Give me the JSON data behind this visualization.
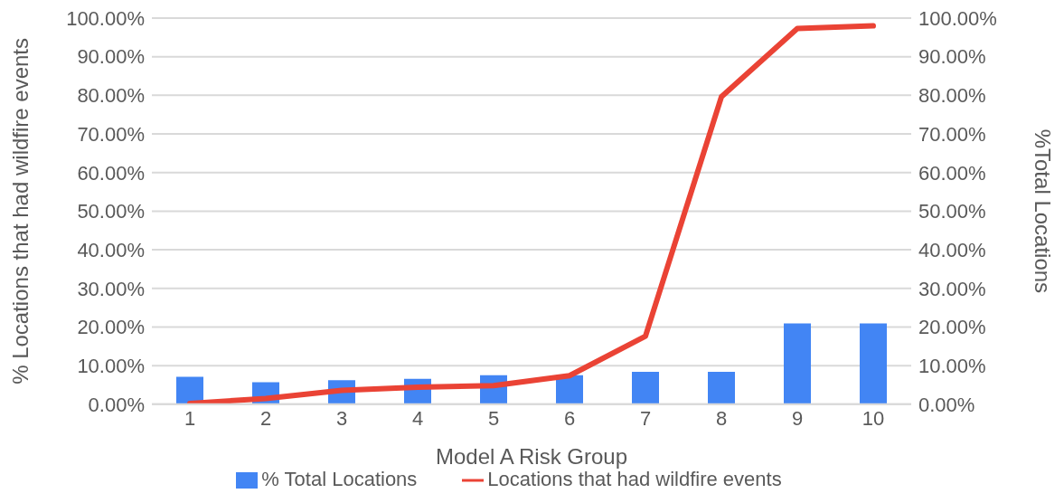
{
  "chart_data": {
    "type": "bar",
    "xlabel": "Model A Risk Group",
    "ylabel": "% Locations that had wildfire events",
    "y2label": "%Total Locations",
    "categories": [
      "1",
      "2",
      "3",
      "4",
      "5",
      "6",
      "7",
      "8",
      "9",
      "10"
    ],
    "series": [
      {
        "name": "% Total Locations",
        "axis": "y2",
        "color": "#4285f4",
        "values": [
          7.1,
          5.7,
          6.2,
          6.6,
          7.5,
          7.5,
          8.4,
          8.4,
          20.9,
          20.9
        ]
      },
      {
        "name": "Locations that had wildfire events",
        "type": "line",
        "color": "#ea4335",
        "values": [
          0.2,
          1.5,
          3.6,
          4.4,
          4.8,
          7.4,
          17.6,
          79.6,
          97.3,
          98.0
        ]
      }
    ],
    "ylim": [
      0,
      100
    ],
    "yticks": [
      {
        "value": 0,
        "label": "0.00%"
      },
      {
        "value": 10,
        "label": "10.00%"
      },
      {
        "value": 20,
        "label": "20.00%"
      },
      {
        "value": 30,
        "label": "30.00%"
      },
      {
        "value": 40,
        "label": "40.00%"
      },
      {
        "value": 50,
        "label": "50.00%"
      },
      {
        "value": 60,
        "label": "60.00%"
      },
      {
        "value": 70,
        "label": "70.00%"
      },
      {
        "value": 80,
        "label": "80.00%"
      },
      {
        "value": 90,
        "label": "90.00%"
      },
      {
        "value": 100,
        "label": "100.00%"
      }
    ],
    "y2lim": [
      0,
      100
    ],
    "y2ticks": [
      {
        "value": 0,
        "label": "0.00%"
      },
      {
        "value": 10,
        "label": "10.00%"
      },
      {
        "value": 20,
        "label": "20.00%"
      },
      {
        "value": 30,
        "label": "30.00%"
      },
      {
        "value": 40,
        "label": "40.00%"
      },
      {
        "value": 50,
        "label": "50.00%"
      },
      {
        "value": 60,
        "label": "60.00%"
      },
      {
        "value": 70,
        "label": "70.00%"
      },
      {
        "value": 80,
        "label": "80.00%"
      },
      {
        "value": 90,
        "label": "90.00%"
      },
      {
        "value": 100,
        "label": "100.00%"
      }
    ],
    "grid": "y",
    "legend": "bottom",
    "marker": "none",
    "line_style": "solid"
  }
}
